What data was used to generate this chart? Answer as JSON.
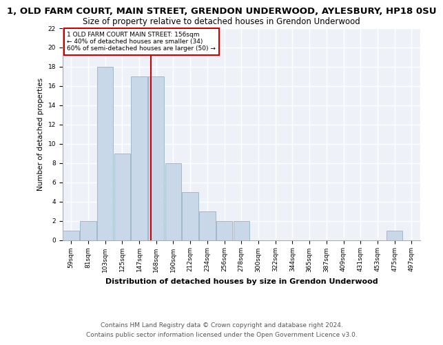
{
  "title_top": "1, OLD FARM COURT, MAIN STREET, GRENDON UNDERWOOD, AYLESBURY, HP18 0SU",
  "title_sub": "Size of property relative to detached houses in Grendon Underwood",
  "xlabel": "Distribution of detached houses by size in Grendon Underwood",
  "ylabel": "Number of detached properties",
  "footnote1": "Contains HM Land Registry data © Crown copyright and database right 2024.",
  "footnote2": "Contains public sector information licensed under the Open Government Licence v3.0.",
  "bin_labels": [
    "59sqm",
    "81sqm",
    "103sqm",
    "125sqm",
    "147sqm",
    "168sqm",
    "190sqm",
    "212sqm",
    "234sqm",
    "256sqm",
    "278sqm",
    "300sqm",
    "322sqm",
    "344sqm",
    "365sqm",
    "387sqm",
    "409sqm",
    "431sqm",
    "453sqm",
    "475sqm",
    "497sqm"
  ],
  "bar_values": [
    1,
    2,
    18,
    9,
    17,
    17,
    8,
    5,
    3,
    2,
    2,
    0,
    0,
    0,
    0,
    0,
    0,
    0,
    0,
    1,
    0
  ],
  "bar_color": "#c8d8e8",
  "bar_edge_color": "#a0b8cc",
  "vline_x": 4.67,
  "vline_color": "#cc0000",
  "annotation_text": "1 OLD FARM COURT MAIN STREET: 156sqm\n← 40% of detached houses are smaller (34)\n60% of semi-detached houses are larger (50) →",
  "annotation_box_color": "#ffffff",
  "annotation_box_edge": "#cc0000",
  "ylim": [
    0,
    22
  ],
  "yticks": [
    0,
    2,
    4,
    6,
    8,
    10,
    12,
    14,
    16,
    18,
    20,
    22
  ],
  "bg_color": "#eef2f8",
  "grid_color": "#ffffff",
  "title_fontsize": 9.5,
  "sub_fontsize": 8.5,
  "footnote_fontsize": 6.5,
  "xlabel_fontsize": 8.0,
  "ylabel_fontsize": 7.5,
  "tick_fontsize": 6.5,
  "annot_fontsize": 6.5
}
